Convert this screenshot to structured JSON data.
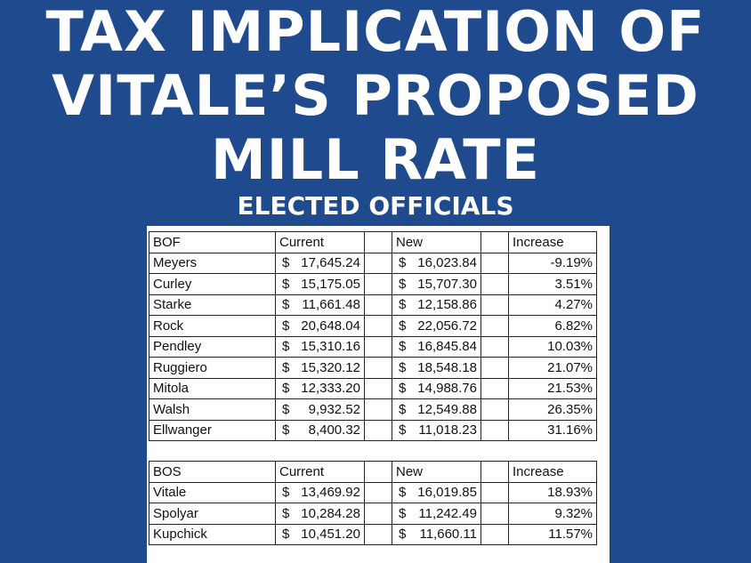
{
  "title_lines": [
    "TAX IMPLICATION OF",
    "VITALE’S PROPOSED",
    "MILL RATE"
  ],
  "subtitle": "ELECTED OFFICIALS",
  "bof_table": {
    "headers": [
      "BOF",
      "Current",
      "New",
      "Increase"
    ],
    "rows": [
      {
        "name": "Meyers",
        "current": "17,645.24",
        "new": "16,023.84",
        "increase": "-9.19%"
      },
      {
        "name": "Curley",
        "current": "15,175.05",
        "new": "15,707.30",
        "increase": "3.51%"
      },
      {
        "name": "Starke",
        "current": "11,661.48",
        "new": "12,158.86",
        "increase": "4.27%"
      },
      {
        "name": "Rock",
        "current": "20,648.04",
        "new": "22,056.72",
        "increase": "6.82%"
      },
      {
        "name": "Pendley",
        "current": "15,310.16",
        "new": "16,845.84",
        "increase": "10.03%"
      },
      {
        "name": "Ruggiero",
        "current": "15,320.12",
        "new": "18,548.18",
        "increase": "21.07%"
      },
      {
        "name": "Mitola",
        "current": "12,333.20",
        "new": "14,988.76",
        "increase": "21.53%"
      },
      {
        "name": "Walsh",
        "current": "9,932.52",
        "new": "12,549.88",
        "increase": "26.35%"
      },
      {
        "name": "Ellwanger",
        "current": "8,400.32",
        "new": "11,018.23",
        "increase": "31.16%"
      }
    ]
  },
  "bos_table": {
    "headers": [
      "BOS",
      "Current",
      "New",
      "Increase"
    ],
    "rows": [
      {
        "name": "Vitale",
        "current": "13,469.92",
        "new": "16,019.85",
        "increase": "18.93%"
      },
      {
        "name": "Spolyar",
        "current": "10,284.28",
        "new": "11,242.49",
        "increase": "9.32%"
      },
      {
        "name": "Kupchick",
        "current": "10,451.20",
        "new": "11,660.11",
        "increase": "11.57%"
      }
    ]
  },
  "currency_symbol": "$"
}
